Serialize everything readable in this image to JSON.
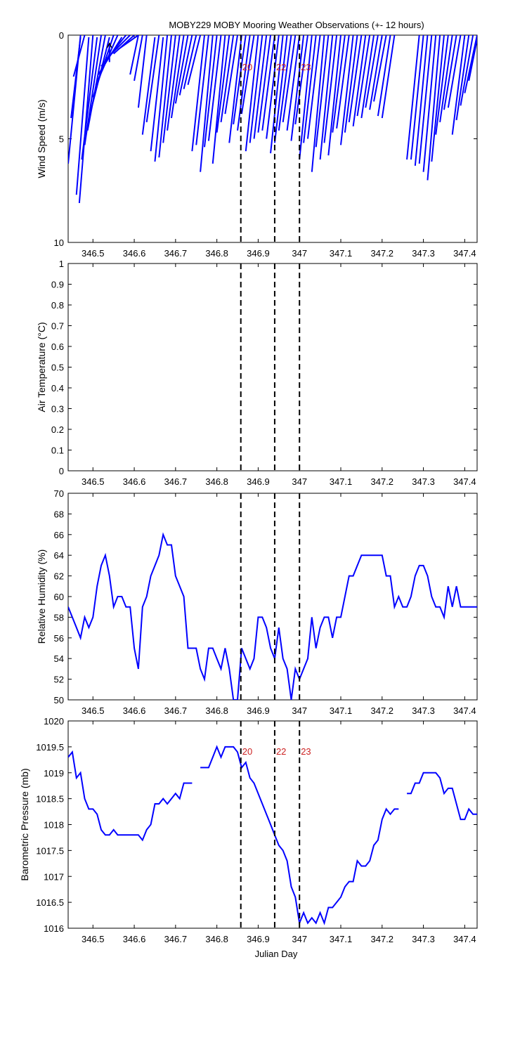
{
  "title": "MOBY229 MOBY Mooring Weather Observations (+- 12 hours)",
  "xlabel": "Julian Day",
  "colors": {
    "series": "#0000ff",
    "marker": "#cc2222",
    "axis": "#000000"
  },
  "x_ticks": [
    "346.5",
    "346.6",
    "346.7",
    "346.8",
    "346.9",
    "347",
    "347.1",
    "347.2",
    "347.3",
    "347.4"
  ],
  "chart_data": [
    {
      "type": "line",
      "id": "wind",
      "subtype": "wind-vector-sticks",
      "ylabel": "Wind Speed (m/s)",
      "ylim": [
        10,
        0
      ],
      "yticks": [
        "0",
        "5",
        "10"
      ],
      "xlim": [
        346.44,
        347.43
      ],
      "markers": [
        {
          "x": 346.858,
          "label": "20"
        },
        {
          "x": 346.94,
          "label": "22"
        },
        {
          "x": 347.0,
          "label": "23"
        }
      ],
      "sticks": [
        [
          346.44,
          6.2,
          346.47,
          0.0
        ],
        [
          346.447,
          4.0,
          346.47,
          0.1
        ],
        [
          346.453,
          2.0,
          346.48,
          0.0
        ],
        [
          346.46,
          7.7,
          346.49,
          0.1
        ],
        [
          346.467,
          8.1,
          346.5,
          0.0
        ],
        [
          346.473,
          6.0,
          346.51,
          0.1
        ],
        [
          346.48,
          5.3,
          346.52,
          0.0
        ],
        [
          346.487,
          4.6,
          346.53,
          0.0
        ],
        [
          346.493,
          3.8,
          346.54,
          0.1
        ],
        [
          346.5,
          3.0,
          346.55,
          0.0
        ],
        [
          346.507,
          2.4,
          346.56,
          0.0
        ],
        [
          346.513,
          1.9,
          346.57,
          0.1
        ],
        [
          346.52,
          1.5,
          346.58,
          0.0
        ],
        [
          346.53,
          1.2,
          346.59,
          0.0
        ],
        [
          346.54,
          1.3,
          346.54,
          0.4
        ],
        [
          346.55,
          0.9,
          346.6,
          0.0
        ],
        [
          346.56,
          0.7,
          346.61,
          0.0
        ],
        [
          346.59,
          1.9,
          346.61,
          0.0
        ],
        [
          346.6,
          2.2,
          346.62,
          0.0
        ],
        [
          346.61,
          3.5,
          346.63,
          0.0
        ],
        [
          346.62,
          4.8,
          346.65,
          0.1
        ],
        [
          346.63,
          4.2,
          346.66,
          0.0
        ],
        [
          346.64,
          5.6,
          346.67,
          0.1
        ],
        [
          346.65,
          6.1,
          346.68,
          0.0
        ],
        [
          346.66,
          5.9,
          346.69,
          0.0
        ],
        [
          346.67,
          5.2,
          346.7,
          0.0
        ],
        [
          346.68,
          4.6,
          346.71,
          0.0
        ],
        [
          346.69,
          4.0,
          346.72,
          0.0
        ],
        [
          346.7,
          3.3,
          346.73,
          0.0
        ],
        [
          346.71,
          2.9,
          346.74,
          0.0
        ],
        [
          346.72,
          2.6,
          346.75,
          0.0
        ],
        [
          346.73,
          2.4,
          346.76,
          0.0
        ],
        [
          346.74,
          5.6,
          346.77,
          0.0
        ],
        [
          346.75,
          5.3,
          346.78,
          0.0
        ],
        [
          346.76,
          6.6,
          346.79,
          0.0
        ],
        [
          346.77,
          5.4,
          346.8,
          0.0
        ],
        [
          346.78,
          5.1,
          346.81,
          0.0
        ],
        [
          346.79,
          6.2,
          346.82,
          0.0
        ],
        [
          346.8,
          4.7,
          346.83,
          0.0
        ],
        [
          346.81,
          4.2,
          346.84,
          0.0
        ],
        [
          346.82,
          3.8,
          346.85,
          0.0
        ],
        [
          346.83,
          5.2,
          346.86,
          0.0
        ],
        [
          346.84,
          4.3,
          346.87,
          0.0
        ],
        [
          346.85,
          4.6,
          346.88,
          0.0
        ],
        [
          346.86,
          3.8,
          346.89,
          0.0
        ],
        [
          346.87,
          5.6,
          346.9,
          0.0
        ],
        [
          346.88,
          5.2,
          346.91,
          0.0
        ],
        [
          346.89,
          5.0,
          346.92,
          0.0
        ],
        [
          346.9,
          4.7,
          346.93,
          0.0
        ],
        [
          346.91,
          4.6,
          346.94,
          0.0
        ],
        [
          346.92,
          5.0,
          346.95,
          0.0
        ],
        [
          346.93,
          5.7,
          346.96,
          0.0
        ],
        [
          346.94,
          5.2,
          346.97,
          0.0
        ],
        [
          346.95,
          4.6,
          346.98,
          0.0
        ],
        [
          346.96,
          4.2,
          346.99,
          0.0
        ],
        [
          346.97,
          4.6,
          347.0,
          0.0
        ],
        [
          346.98,
          5.1,
          347.01,
          0.0
        ],
        [
          346.99,
          4.3,
          347.02,
          0.0
        ],
        [
          347.0,
          6.0,
          347.03,
          0.0
        ],
        [
          347.01,
          5.2,
          347.04,
          0.0
        ],
        [
          347.02,
          5.0,
          347.05,
          0.0
        ],
        [
          347.03,
          6.6,
          347.06,
          0.0
        ],
        [
          347.04,
          5.4,
          347.07,
          0.0
        ],
        [
          347.05,
          6.0,
          347.08,
          0.0
        ],
        [
          347.06,
          5.2,
          347.09,
          0.0
        ],
        [
          347.07,
          5.8,
          347.1,
          0.0
        ],
        [
          347.08,
          4.7,
          347.11,
          0.0
        ],
        [
          347.09,
          4.5,
          347.12,
          0.0
        ],
        [
          347.1,
          5.3,
          347.13,
          0.0
        ],
        [
          347.11,
          4.7,
          347.14,
          0.0
        ],
        [
          347.12,
          4.2,
          347.15,
          0.0
        ],
        [
          347.13,
          4.4,
          347.16,
          0.0
        ],
        [
          347.14,
          3.9,
          347.17,
          0.0
        ],
        [
          347.15,
          4.0,
          347.18,
          0.0
        ],
        [
          347.16,
          3.5,
          347.19,
          0.0
        ],
        [
          347.17,
          3.6,
          347.2,
          0.0
        ],
        [
          347.18,
          3.2,
          347.21,
          0.0
        ],
        [
          347.19,
          3.9,
          347.22,
          0.0
        ],
        [
          347.2,
          4.0,
          347.23,
          0.0
        ],
        [
          347.26,
          6.0,
          347.29,
          0.0
        ],
        [
          347.27,
          6.0,
          347.3,
          0.0
        ],
        [
          347.28,
          6.3,
          347.31,
          0.0
        ],
        [
          347.29,
          6.2,
          347.32,
          0.0
        ],
        [
          347.3,
          6.6,
          347.33,
          0.0
        ],
        [
          347.31,
          7.0,
          347.34,
          0.0
        ],
        [
          347.32,
          6.1,
          347.35,
          0.0
        ],
        [
          347.33,
          4.8,
          347.36,
          0.0
        ],
        [
          347.34,
          4.2,
          347.37,
          0.0
        ],
        [
          347.35,
          3.6,
          347.38,
          0.0
        ],
        [
          347.36,
          3.5,
          347.39,
          0.0
        ],
        [
          347.37,
          4.8,
          347.4,
          0.0
        ],
        [
          347.38,
          4.1,
          347.41,
          0.0
        ],
        [
          347.39,
          3.4,
          347.42,
          0.0
        ],
        [
          347.4,
          2.8,
          347.43,
          0.0
        ],
        [
          347.41,
          2.2,
          347.43,
          0.2
        ]
      ]
    },
    {
      "type": "line",
      "id": "airtemp",
      "ylabel": "Air Temperature (°C)",
      "ylim": [
        0,
        1
      ],
      "yticks": [
        "1",
        "0.9",
        "0.8",
        "0.7",
        "0.6",
        "0.5",
        "0.4",
        "0.3",
        "0.2",
        "0.1",
        "0"
      ],
      "xlim": [
        346.44,
        347.43
      ],
      "markers": [
        {
          "x": 346.858
        },
        {
          "x": 346.94
        },
        {
          "x": 347.0
        }
      ],
      "x": [],
      "y": []
    },
    {
      "type": "line",
      "id": "rh",
      "ylabel": "Relative Humidity (%)",
      "ylim": [
        50,
        70
      ],
      "yticks": [
        "70",
        "68",
        "66",
        "64",
        "62",
        "60",
        "58",
        "56",
        "54",
        "52",
        "50"
      ],
      "xlim": [
        346.44,
        347.43
      ],
      "markers": [
        {
          "x": 346.858
        },
        {
          "x": 346.94
        },
        {
          "x": 347.0
        }
      ],
      "x": [
        346.44,
        346.45,
        346.46,
        346.47,
        346.48,
        346.49,
        346.5,
        346.51,
        346.52,
        346.53,
        346.54,
        346.55,
        346.56,
        346.57,
        346.58,
        346.59,
        346.6,
        346.61,
        346.62,
        346.63,
        346.64,
        346.65,
        346.66,
        346.67,
        346.68,
        346.69,
        346.7,
        346.71,
        346.72,
        346.73,
        346.74,
        346.75,
        346.76,
        346.77,
        346.78,
        346.79,
        346.8,
        346.81,
        346.82,
        346.83,
        346.84,
        346.85,
        346.86,
        346.87,
        346.88,
        346.89,
        346.9,
        346.91,
        346.92,
        346.93,
        346.94,
        346.95,
        346.96,
        346.97,
        346.98,
        346.99,
        347.0,
        347.01,
        347.02,
        347.03,
        347.04,
        347.05,
        347.06,
        347.07,
        347.08,
        347.09,
        347.1,
        347.11,
        347.12,
        347.13,
        347.14,
        347.15,
        347.16,
        347.17,
        347.18,
        347.19,
        347.2,
        347.21,
        347.22,
        347.23,
        347.24,
        347.25,
        347.26,
        347.27,
        347.28,
        347.29,
        347.3,
        347.31,
        347.32,
        347.33,
        347.34,
        347.35,
        347.36,
        347.37,
        347.38,
        347.39,
        347.4,
        347.41,
        347.42,
        347.43
      ],
      "y": [
        59,
        58,
        57,
        56,
        58,
        57,
        58,
        61,
        63,
        64,
        62,
        59,
        60,
        60,
        59,
        59,
        55,
        53,
        59,
        60,
        62,
        63,
        64,
        66,
        65,
        65,
        62,
        61,
        60,
        55,
        55,
        55,
        53,
        52,
        55,
        55,
        54,
        53,
        55,
        53,
        50,
        50,
        55,
        54,
        53,
        54,
        58,
        58,
        57,
        55,
        54,
        57,
        54,
        53,
        50,
        53,
        52,
        53,
        54,
        58,
        55,
        57,
        58,
        58,
        56,
        58,
        58,
        60,
        62,
        62,
        63,
        64,
        64,
        64,
        64,
        64,
        64,
        62,
        62,
        59,
        60,
        59,
        59,
        60,
        62,
        63,
        63,
        62,
        60,
        59,
        59,
        58,
        61,
        59,
        61,
        59,
        59,
        59,
        59,
        59
      ],
      "y_note_trim": 98
    },
    {
      "type": "line",
      "id": "bp",
      "ylabel": "Barometric Pressure (mb)",
      "ylim": [
        1016,
        1020
      ],
      "yticks": [
        "1020",
        "1019.5",
        "1019",
        "1018.5",
        "1018",
        "1017.5",
        "1017",
        "1016.5",
        "1016"
      ],
      "xlim": [
        346.44,
        347.43
      ],
      "markers": [
        {
          "x": 346.858,
          "label": "20"
        },
        {
          "x": 346.94,
          "label": "22"
        },
        {
          "x": 347.0,
          "label": "23"
        }
      ],
      "segments": [
        {
          "x": [
            346.44,
            346.45,
            346.46,
            346.47,
            346.48,
            346.49,
            346.5,
            346.51,
            346.52,
            346.53,
            346.54,
            346.55,
            346.56,
            346.57,
            346.58,
            346.59,
            346.6,
            346.61,
            346.62,
            346.63,
            346.64,
            346.65,
            346.66,
            346.67,
            346.68,
            346.69,
            346.7,
            346.71,
            346.72,
            346.73,
            346.74
          ],
          "y": [
            1019.3,
            1019.4,
            1018.9,
            1019.0,
            1018.5,
            1018.3,
            1018.3,
            1018.2,
            1017.9,
            1017.8,
            1017.8,
            1017.9,
            1017.8,
            1017.8,
            1017.8,
            1017.8,
            1017.8,
            1017.8,
            1017.7,
            1017.9,
            1018.0,
            1018.4,
            1018.4,
            1018.5,
            1018.4,
            1018.5,
            1018.6,
            1018.5,
            1018.8,
            1018.8,
            1018.8
          ]
        },
        {
          "x": [
            346.76,
            346.78,
            346.79,
            346.8,
            346.81,
            346.82,
            346.83,
            346.84,
            346.85,
            346.86,
            346.87,
            346.88,
            346.89,
            346.9,
            346.91,
            346.92,
            346.93,
            346.94,
            346.95,
            346.96,
            346.97,
            346.98,
            346.99,
            347.0,
            347.01,
            347.02,
            347.03,
            347.04,
            347.05,
            347.06,
            347.07,
            347.08,
            347.09,
            347.1,
            347.11,
            347.12,
            347.13,
            347.14,
            347.15,
            347.16,
            347.17,
            347.18,
            347.19,
            347.2,
            347.21,
            347.22,
            347.23,
            347.24
          ],
          "y": [
            1019.1,
            1019.1,
            1019.3,
            1019.5,
            1019.3,
            1019.5,
            1019.5,
            1019.5,
            1019.4,
            1019.1,
            1019.2,
            1018.9,
            1018.8,
            1018.6,
            1018.4,
            1018.2,
            1018.0,
            1017.8,
            1017.6,
            1017.5,
            1017.3,
            1016.8,
            1016.6,
            1016.1,
            1016.3,
            1016.1,
            1016.2,
            1016.1,
            1016.3,
            1016.1,
            1016.4,
            1016.4,
            1016.5,
            1016.6,
            1016.8,
            1016.9,
            1016.9,
            1017.3,
            1017.2,
            1017.2,
            1017.3,
            1017.6,
            1017.7,
            1018.1,
            1018.3,
            1018.2,
            1018.3,
            1018.3
          ]
        },
        {
          "x": [
            347.26,
            347.27,
            347.28,
            347.29,
            347.3,
            347.31,
            347.32,
            347.33,
            347.34,
            347.35,
            347.36,
            347.37,
            347.38,
            347.39,
            347.4,
            347.41,
            347.42,
            347.43
          ],
          "y": [
            1018.6,
            1018.6,
            1018.8,
            1018.8,
            1019.0,
            1019.0,
            1019.0,
            1019.0,
            1018.9,
            1018.6,
            1018.7,
            1018.7,
            1018.4,
            1018.1,
            1018.1,
            1018.3,
            1018.2,
            1018.2
          ]
        }
      ]
    }
  ]
}
